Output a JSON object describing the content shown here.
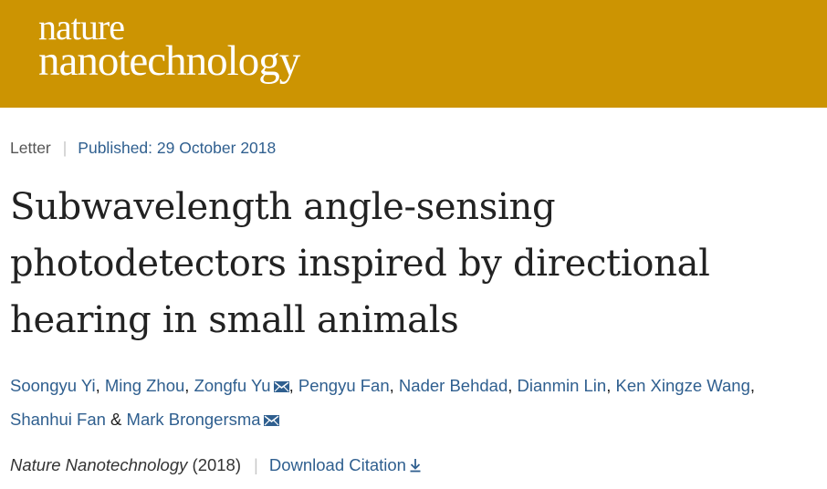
{
  "journal": {
    "logo_line1": "nature",
    "logo_line2": "nanotechnology"
  },
  "meta": {
    "article_type": "Letter",
    "published": "Published: 29 October 2018"
  },
  "article": {
    "title": "Subwavelength angle-sensing photodetectors inspired by directional hearing in small animals"
  },
  "authors": [
    "Soongyu Yi",
    "Ming Zhou",
    "Zongfu Yu",
    "Pengyu Fan",
    "Nader Behdad",
    "Dianmin Lin",
    "Ken Xingze Wang",
    "Shanhui Fan",
    "Mark Brongersma"
  ],
  "citation": {
    "journal_name": "Nature Nanotechnology",
    "year": "(2018)",
    "download_label": "Download Citation"
  },
  "colors": {
    "banner": "#cc9402",
    "link": "#2f5f8f"
  },
  "icons": {
    "corresponding_author": "envelope-icon",
    "download": "download-arrow-icon"
  }
}
